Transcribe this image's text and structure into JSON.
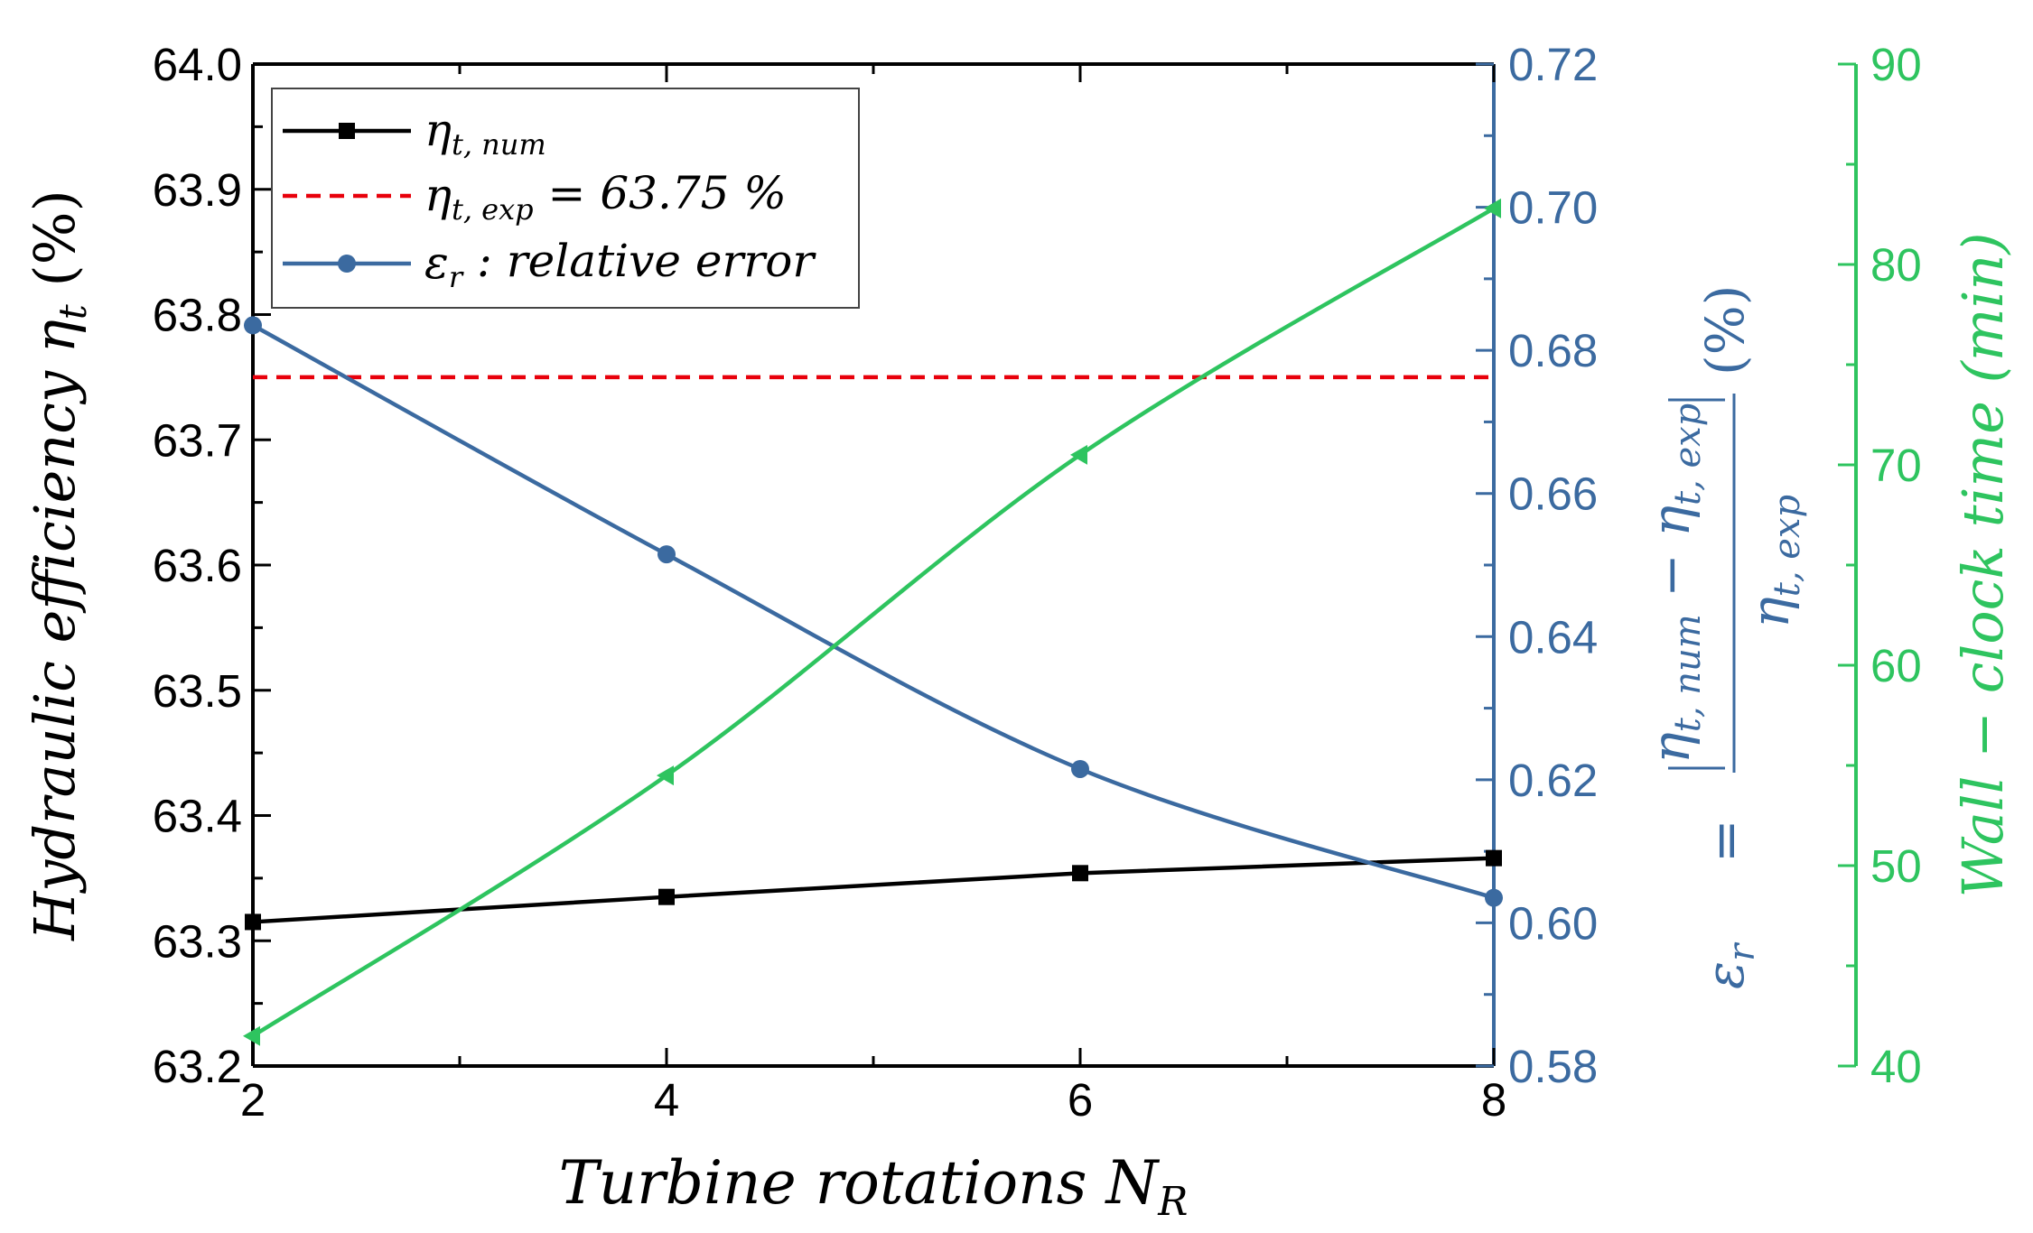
{
  "chart_data": {
    "type": "line",
    "x": [
      2,
      4,
      6,
      8
    ],
    "xlim": [
      2,
      8
    ],
    "xticks": [
      "2",
      "4",
      "6",
      "8"
    ],
    "xlabel": {
      "text": "Turbine rotations N",
      "sub": "R"
    },
    "left_axis": {
      "ylim": [
        63.2,
        64.0
      ],
      "ticks": [
        "63.2",
        "63.3",
        "63.4",
        "63.5",
        "63.6",
        "63.7",
        "63.8",
        "63.9",
        "64.0"
      ],
      "label": {
        "pre": "Hydraulic efficiency η",
        "sub": "t",
        "post": " (%)"
      }
    },
    "right_axis": {
      "ylim": [
        0.58,
        0.72
      ],
      "ticks": [
        "0.58",
        "0.60",
        "0.62",
        "0.64",
        "0.66",
        "0.68",
        "0.70",
        "0.72"
      ],
      "label": {
        "lhs": "ε",
        "lhs_sub": "r",
        "eq": "=",
        "num_a": "η",
        "num_a_sub": "t, num",
        "minus": "−",
        "num_b": "η",
        "num_b_sub": "t, exp",
        "den": "η",
        "den_sub": "t, exp",
        "pct": "(%)"
      },
      "color": "#3b6aa0"
    },
    "green_axis": {
      "ylim": [
        40,
        90
      ],
      "ticks": [
        "40",
        "50",
        "60",
        "70",
        "80",
        "90"
      ],
      "label": "Wall − clock time (min)",
      "color": "#2ec45f"
    },
    "series": [
      {
        "name": "η_t,num",
        "legend": {
          "main": "η",
          "sub": "t, num"
        },
        "axis": "left",
        "color": "#000000",
        "marker": "square",
        "values": [
          63.315,
          63.335,
          63.354,
          63.366
        ]
      },
      {
        "name": "η_t,exp = 63.75 %",
        "legend": {
          "main": "η",
          "sub": "t, exp",
          "tail": " = 63.75 %"
        },
        "axis": "left",
        "color": "#e8000b",
        "style": "dashed",
        "marker": "none",
        "values": [
          63.75,
          63.75,
          63.75,
          63.75
        ]
      },
      {
        "name": "ε_r : relative error",
        "legend": {
          "main": "ε",
          "sub": "r",
          "tail": " : relative error"
        },
        "axis": "right",
        "color": "#3b6aa0",
        "marker": "circle",
        "values": [
          0.6835,
          0.6515,
          0.6215,
          0.6035
        ]
      },
      {
        "name": "Wall-clock time",
        "axis": "green",
        "color": "#2ec45f",
        "marker": "triangle-left",
        "values": [
          41.5,
          54.5,
          70.5,
          82.8
        ]
      }
    ]
  }
}
